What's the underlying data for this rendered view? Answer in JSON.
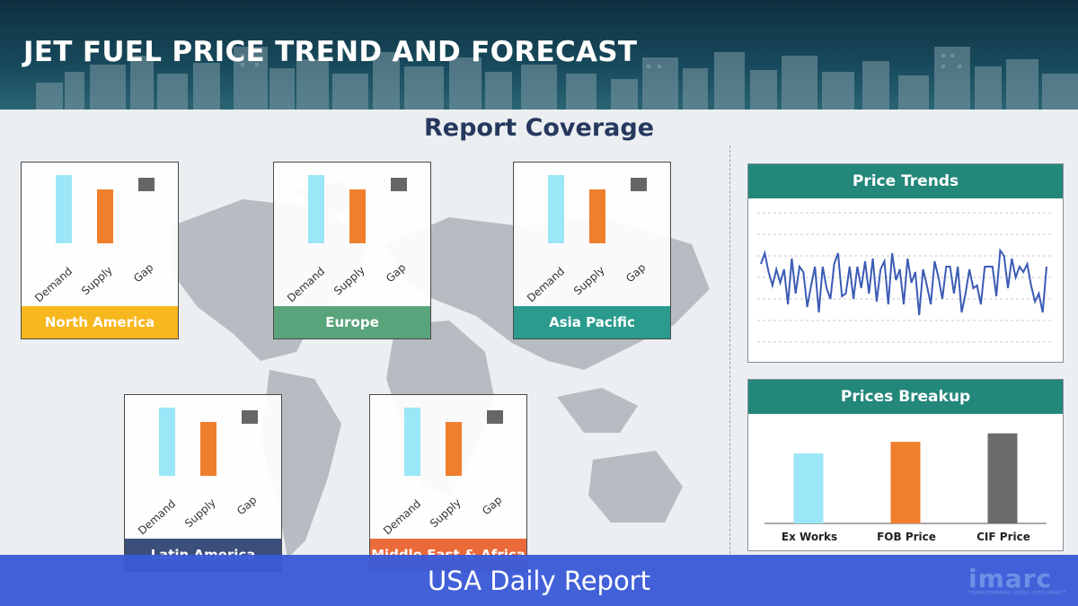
{
  "header": {
    "title": "JET FUEL PRICE TREND AND FORECAST"
  },
  "main": {
    "heading": "Report Coverage"
  },
  "regions": [
    {
      "name": "North America",
      "color": "#f7b71e",
      "labels": [
        "Demand",
        "Supply",
        "Gap"
      ]
    },
    {
      "name": "Europe",
      "color": "#5aa47c",
      "labels": [
        "Demand",
        "Supply",
        "Gap"
      ]
    },
    {
      "name": "Asia Pacific",
      "color": "#2a9b8d",
      "labels": [
        "Demand",
        "Supply",
        "Gap"
      ]
    },
    {
      "name": "Latin America",
      "color": "#3c4f7a",
      "labels": [
        "Demand",
        "Supply",
        "Gap"
      ]
    },
    {
      "name": "Middle East & Africa",
      "color": "#ea6a3a",
      "labels": [
        "Demand",
        "Supply",
        "Gap"
      ]
    }
  ],
  "price_trends": {
    "title": "Price Trends",
    "line_color": "#3b5bb5",
    "values": [
      62,
      70,
      56,
      46,
      58,
      48,
      58,
      32,
      66,
      40,
      60,
      56,
      30,
      46,
      60,
      26,
      60,
      44,
      36,
      62,
      70,
      38,
      40,
      60,
      36,
      60,
      44,
      64,
      40,
      66,
      34,
      58,
      64,
      32,
      70,
      50,
      58,
      32,
      66,
      48,
      56,
      24,
      58,
      46,
      32,
      64,
      52,
      36,
      60,
      60,
      40,
      60,
      26,
      40,
      58,
      44,
      46,
      32,
      60,
      60,
      60,
      38,
      72,
      68,
      44,
      66,
      52,
      60,
      56,
      62,
      46,
      34,
      40,
      26,
      60
    ]
  },
  "prices_breakup": {
    "title": "Prices Breakup",
    "items": [
      {
        "label": "Ex Works",
        "value": 0.66,
        "color": "#9be6f7"
      },
      {
        "label": "FOB Price",
        "value": 0.77,
        "color": "#ef7f2c"
      },
      {
        "label": "CIF Price",
        "value": 0.85,
        "color": "#6d6a6a"
      }
    ]
  },
  "footer": {
    "text": "USA Daily Report"
  },
  "logo": {
    "word": "imarc",
    "tagline": "TRANSFORMING IDEAS INTO IMPACT"
  }
}
